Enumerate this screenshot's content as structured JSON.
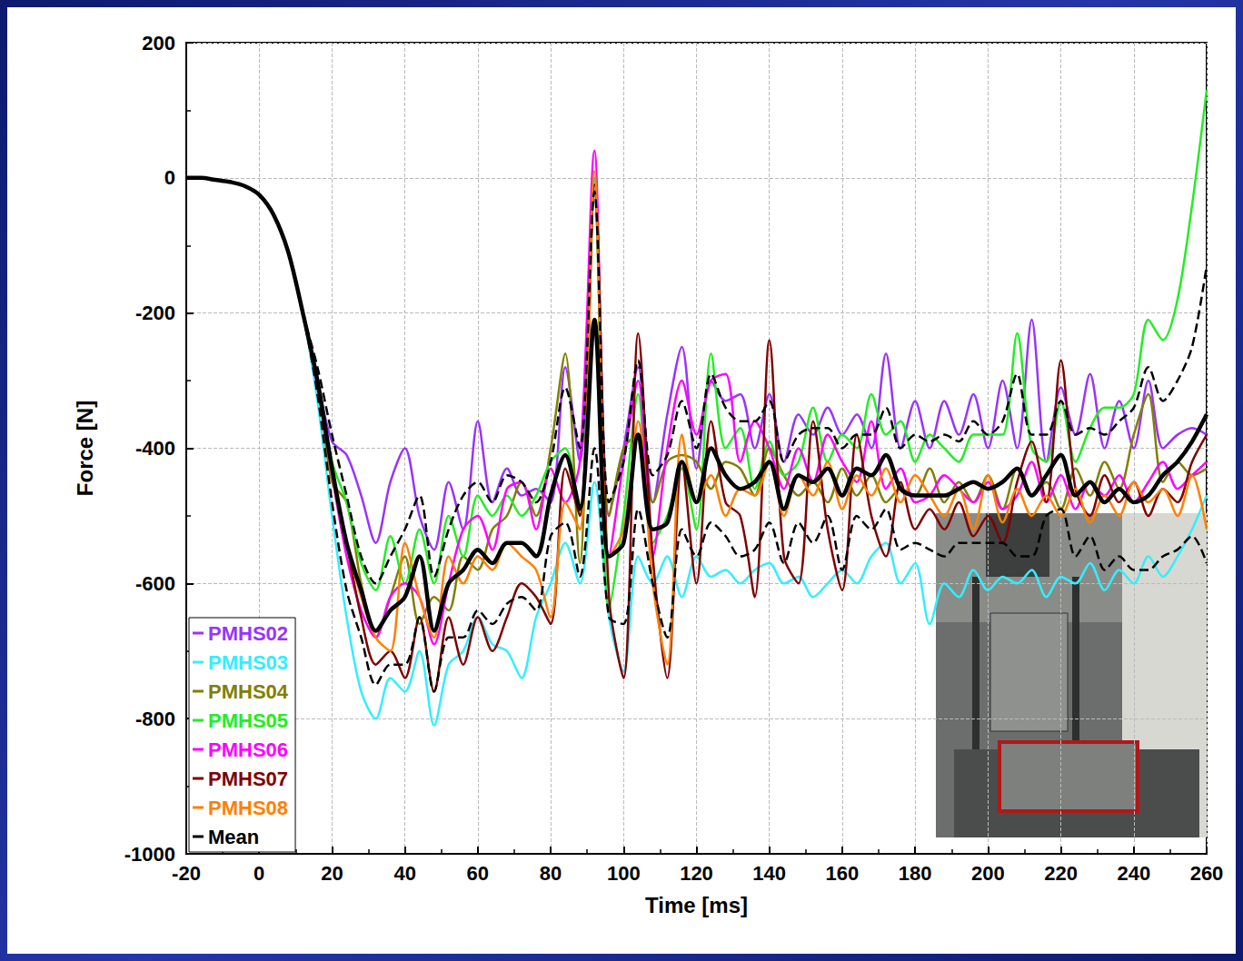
{
  "chart_data": {
    "type": "line",
    "x_label": "Time [ms]",
    "y_label": "Force [N]",
    "xlim": [
      -20,
      260
    ],
    "xticks": [
      -20,
      0,
      20,
      40,
      60,
      80,
      100,
      120,
      140,
      160,
      180,
      200,
      220,
      240,
      260
    ],
    "ylim": [
      -1000,
      200
    ],
    "yticks": [
      -1000,
      -800,
      -600,
      -400,
      -200,
      0,
      200
    ],
    "grid": true,
    "legend": "lower left",
    "x": [
      -20,
      -16,
      -12,
      -8,
      -4,
      0,
      4,
      8,
      12,
      16,
      20,
      24,
      28,
      32,
      36,
      40,
      44,
      48,
      52,
      56,
      60,
      64,
      68,
      72,
      76,
      80,
      84,
      88,
      92,
      96,
      100,
      104,
      108,
      112,
      116,
      120,
      124,
      128,
      132,
      136,
      140,
      144,
      148,
      152,
      156,
      160,
      164,
      168,
      172,
      176,
      180,
      184,
      188,
      192,
      196,
      200,
      204,
      208,
      212,
      216,
      220,
      224,
      228,
      232,
      236,
      240,
      244,
      248,
      252,
      256,
      260
    ],
    "series": [
      {
        "name": "PMHS02",
        "color": "#9933ff",
        "values": [
          0,
          0,
          -3,
          -6,
          -12,
          -25,
          -55,
          -110,
          -200,
          -300,
          -390,
          -410,
          -470,
          -540,
          -450,
          -400,
          -500,
          -550,
          -450,
          -520,
          -360,
          -480,
          -430,
          -470,
          -460,
          -480,
          -280,
          -420,
          0,
          -500,
          -400,
          -280,
          -480,
          -350,
          -250,
          -430,
          -300,
          -330,
          -320,
          -400,
          -320,
          -420,
          -350,
          -380,
          -340,
          -380,
          -350,
          -400,
          -260,
          -400,
          -330,
          -400,
          -330,
          -380,
          -320,
          -400,
          -300,
          -400,
          -210,
          -420,
          -310,
          -380,
          -290,
          -400,
          -330,
          -400,
          -300,
          -400,
          -380,
          -370,
          -380
        ]
      },
      {
        "name": "PMHS03",
        "color": "#33eeff",
        "values": [
          0,
          0,
          -3,
          -6,
          -12,
          -25,
          -55,
          -110,
          -200,
          -330,
          -500,
          -650,
          -760,
          -800,
          -740,
          -760,
          -700,
          -810,
          -720,
          -700,
          -650,
          -690,
          -700,
          -740,
          -650,
          -600,
          -540,
          -600,
          -450,
          -650,
          -730,
          -560,
          -600,
          -560,
          -620,
          -560,
          -590,
          -580,
          -600,
          -580,
          -570,
          -600,
          -590,
          -620,
          -600,
          -580,
          -600,
          -560,
          -540,
          -600,
          -570,
          -660,
          -600,
          -620,
          -580,
          -610,
          -590,
          -600,
          -580,
          -620,
          -590,
          -600,
          -570,
          -610,
          -580,
          -600,
          -560,
          -590,
          -560,
          -520,
          -470
        ]
      },
      {
        "name": "PMHS04",
        "color": "#808000",
        "values": [
          0,
          0,
          -3,
          -6,
          -12,
          -25,
          -55,
          -110,
          -200,
          -300,
          -450,
          -480,
          -600,
          -680,
          -620,
          -560,
          -660,
          -620,
          -640,
          -560,
          -580,
          -520,
          -500,
          -450,
          -500,
          -400,
          -260,
          -570,
          -20,
          -500,
          -400,
          -380,
          -480,
          -420,
          -410,
          -420,
          -460,
          -420,
          -430,
          -470,
          -400,
          -440,
          -470,
          -450,
          -480,
          -430,
          -470,
          -440,
          -480,
          -460,
          -470,
          -430,
          -480,
          -450,
          -480,
          -440,
          -490,
          -430,
          -470,
          -450,
          -490,
          -430,
          -470,
          -420,
          -460,
          -380,
          -320,
          -450,
          -420,
          -440,
          -430
        ]
      },
      {
        "name": "PMHS05",
        "color": "#22ee22",
        "values": [
          0,
          0,
          -3,
          -6,
          -12,
          -25,
          -55,
          -110,
          -200,
          -300,
          -420,
          -480,
          -570,
          -610,
          -530,
          -600,
          -520,
          -600,
          -500,
          -560,
          -470,
          -500,
          -470,
          -500,
          -470,
          -420,
          -400,
          -500,
          0,
          -640,
          -500,
          -320,
          -540,
          -500,
          -430,
          -520,
          -260,
          -400,
          -370,
          -460,
          -390,
          -440,
          -420,
          -340,
          -420,
          -380,
          -400,
          -320,
          -380,
          -360,
          -420,
          -380,
          -400,
          -420,
          -380,
          -380,
          -380,
          -230,
          -400,
          -420,
          -330,
          -420,
          -370,
          -340,
          -340,
          -320,
          -210,
          -240,
          -180,
          -40,
          130
        ]
      },
      {
        "name": "PMHS06",
        "color": "#ff00ff",
        "values": [
          0,
          0,
          -3,
          -6,
          -12,
          -25,
          -55,
          -110,
          -200,
          -310,
          -440,
          -560,
          -640,
          -680,
          -620,
          -600,
          -620,
          -690,
          -600,
          -520,
          -500,
          -550,
          -460,
          -450,
          -520,
          -430,
          -480,
          -420,
          40,
          -560,
          -420,
          -300,
          -560,
          -400,
          -300,
          -380,
          -300,
          -290,
          -420,
          -360,
          -400,
          -460,
          -400,
          -450,
          -380,
          -420,
          -450,
          -360,
          -460,
          -430,
          -480,
          -470,
          -440,
          -460,
          -480,
          -450,
          -490,
          -470,
          -420,
          -480,
          -440,
          -490,
          -450,
          -470,
          -440,
          -480,
          -450,
          -420,
          -460,
          -440,
          -420
        ]
      },
      {
        "name": "PMHS07",
        "color": "#800000",
        "values": [
          0,
          0,
          -3,
          -6,
          -12,
          -25,
          -55,
          -110,
          -200,
          -300,
          -430,
          -540,
          -650,
          -720,
          -700,
          -740,
          -650,
          -760,
          -650,
          -720,
          -650,
          -700,
          -650,
          -600,
          -620,
          -660,
          -430,
          -500,
          -10,
          -620,
          -740,
          -230,
          -560,
          -740,
          -420,
          -600,
          -360,
          -480,
          -500,
          -620,
          -240,
          -560,
          -600,
          -360,
          -520,
          -610,
          -380,
          -500,
          -560,
          -450,
          -520,
          -490,
          -520,
          -480,
          -530,
          -500,
          -540,
          -450,
          -390,
          -480,
          -270,
          -460,
          -500,
          -440,
          -480,
          -450,
          -500,
          -460,
          -480,
          -420,
          -380
        ]
      },
      {
        "name": "PMHS08",
        "color": "#ff8000",
        "values": [
          0,
          0,
          -3,
          -6,
          -12,
          -25,
          -55,
          -110,
          -200,
          -300,
          -440,
          -540,
          -620,
          -680,
          -700,
          -540,
          -620,
          -680,
          -560,
          -600,
          -560,
          -580,
          -540,
          -560,
          -580,
          -650,
          -480,
          -520,
          10,
          -560,
          -520,
          -360,
          -600,
          -720,
          -380,
          -480,
          -440,
          -500,
          -460,
          -470,
          -420,
          -500,
          -440,
          -470,
          -420,
          -490,
          -440,
          -470,
          -430,
          -480,
          -440,
          -470,
          -500,
          -460,
          -520,
          -440,
          -510,
          -460,
          -500,
          -470,
          -500,
          -460,
          -510,
          -470,
          -500,
          -450,
          -480,
          -460,
          -500,
          -440,
          -520
        ]
      },
      {
        "name": "Mean",
        "color": "#000000",
        "values": [
          0,
          0,
          -3,
          -6,
          -12,
          -25,
          -55,
          -110,
          -200,
          -300,
          -430,
          -540,
          -610,
          -670,
          -640,
          -620,
          -560,
          -670,
          -600,
          -580,
          -550,
          -570,
          -540,
          -540,
          -560,
          -470,
          -410,
          -490,
          -210,
          -560,
          -540,
          -380,
          -520,
          -510,
          -420,
          -480,
          -400,
          -440,
          -460,
          -450,
          -420,
          -490,
          -440,
          -450,
          -430,
          -470,
          -430,
          -440,
          -410,
          -460,
          -470,
          -470,
          -470,
          -460,
          -450,
          -460,
          -450,
          -430,
          -470,
          -440,
          -410,
          -470,
          -450,
          -480,
          -460,
          -480,
          -470,
          -440,
          -420,
          -390,
          -350
        ]
      },
      {
        "color": "#000000",
        "line_style": "dashed",
        "values": [
          0,
          0,
          -3,
          -6,
          -12,
          -25,
          -55,
          -110,
          -200,
          -280,
          -380,
          -470,
          -560,
          -600,
          -560,
          -520,
          -470,
          -590,
          -520,
          -470,
          -450,
          -480,
          -440,
          -450,
          -480,
          -420,
          -310,
          -400,
          -20,
          -480,
          -420,
          -270,
          -440,
          -410,
          -330,
          -400,
          -290,
          -340,
          -360,
          -360,
          -330,
          -420,
          -380,
          -370,
          -370,
          -400,
          -380,
          -380,
          -340,
          -400,
          -380,
          -390,
          -380,
          -390,
          -360,
          -380,
          -360,
          -290,
          -380,
          -380,
          -330,
          -380,
          -370,
          -380,
          -360,
          -340,
          -280,
          -330,
          -300,
          -250,
          -130
        ]
      },
      {
        "color": "#000000",
        "line_style": "dashed",
        "values": [
          0,
          0,
          -3,
          -6,
          -12,
          -25,
          -55,
          -110,
          -200,
          -320,
          -480,
          -610,
          -680,
          -750,
          -720,
          -720,
          -650,
          -760,
          -680,
          -680,
          -640,
          -660,
          -630,
          -620,
          -640,
          -530,
          -510,
          -590,
          -400,
          -650,
          -660,
          -490,
          -600,
          -680,
          -520,
          -560,
          -510,
          -530,
          -560,
          -550,
          -510,
          -570,
          -510,
          -540,
          -500,
          -580,
          -500,
          -520,
          -490,
          -550,
          -540,
          -550,
          -560,
          -540,
          -540,
          -540,
          -540,
          -560,
          -560,
          -500,
          -490,
          -560,
          -530,
          -580,
          -560,
          -580,
          -580,
          -560,
          -550,
          -530,
          -570
        ]
      }
    ]
  }
}
